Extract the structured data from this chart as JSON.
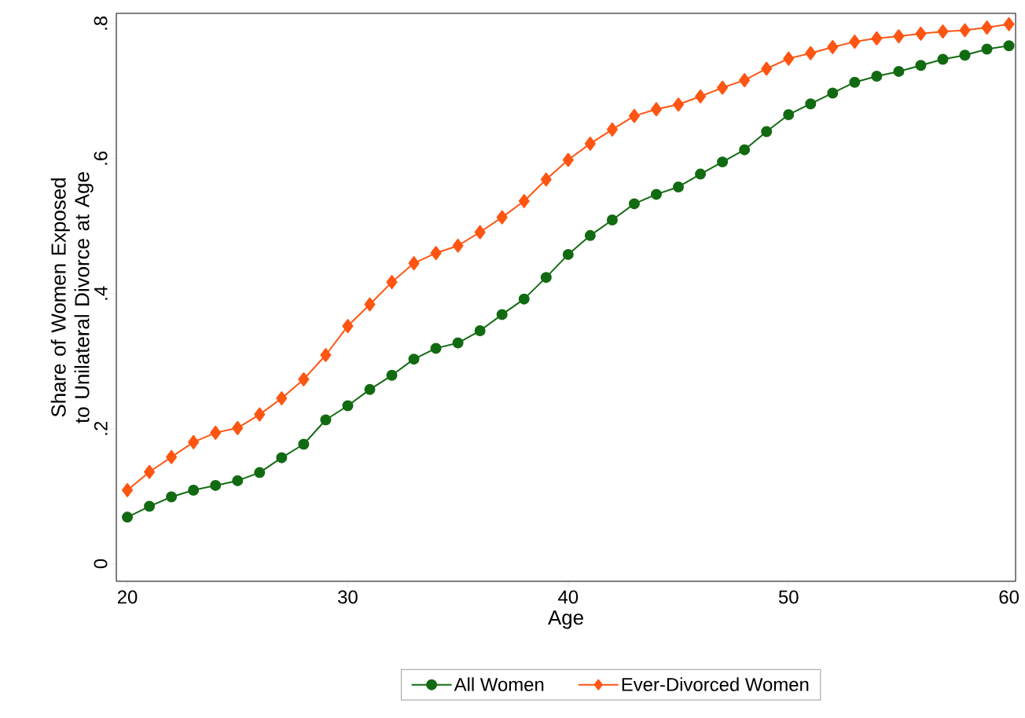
{
  "chart_data": {
    "type": "line",
    "xlabel": "Age",
    "ylabel": "Share of Women Exposed to Unilateral Divorce at Age",
    "x": [
      20,
      21,
      22,
      23,
      24,
      25,
      26,
      27,
      28,
      29,
      30,
      31,
      32,
      33,
      34,
      35,
      36,
      37,
      38,
      39,
      40,
      41,
      42,
      43,
      44,
      45,
      46,
      47,
      48,
      49,
      50,
      51,
      52,
      53,
      54,
      55,
      56,
      57,
      58,
      59,
      60
    ],
    "series": [
      {
        "name": "All Women",
        "color": "#126b12",
        "marker": "circle",
        "values": [
          0.069,
          0.085,
          0.099,
          0.109,
          0.116,
          0.123,
          0.135,
          0.157,
          0.177,
          0.213,
          0.234,
          0.258,
          0.279,
          0.303,
          0.319,
          0.327,
          0.345,
          0.369,
          0.392,
          0.424,
          0.458,
          0.486,
          0.509,
          0.533,
          0.547,
          0.558,
          0.577,
          0.595,
          0.613,
          0.64,
          0.665,
          0.681,
          0.697,
          0.713,
          0.722,
          0.729,
          0.738,
          0.747,
          0.753,
          0.762,
          0.767
        ]
      },
      {
        "name": "Ever-Divorced Women",
        "color": "#ff5512",
        "marker": "diamond",
        "values": [
          0.109,
          0.136,
          0.158,
          0.18,
          0.194,
          0.201,
          0.221,
          0.245,
          0.273,
          0.309,
          0.352,
          0.384,
          0.417,
          0.445,
          0.46,
          0.471,
          0.491,
          0.513,
          0.537,
          0.569,
          0.598,
          0.622,
          0.643,
          0.663,
          0.673,
          0.68,
          0.692,
          0.705,
          0.716,
          0.733,
          0.748,
          0.756,
          0.765,
          0.773,
          0.778,
          0.781,
          0.785,
          0.788,
          0.79,
          0.794,
          0.799
        ]
      }
    ],
    "xlim": [
      19.5,
      60.3
    ],
    "ylim": [
      -0.026,
      0.815
    ],
    "xticks": [
      20,
      30,
      40,
      50,
      60
    ],
    "yticks": [
      0,
      {
        "value": 0.2,
        "label": ".2"
      },
      {
        "value": 0.4,
        "label": ".4"
      },
      {
        "value": 0.6,
        "label": ".6"
      },
      {
        "value": 0.8,
        "label": ".8"
      }
    ],
    "grid": false,
    "legend": "bottom",
    "line_style": "solid"
  }
}
